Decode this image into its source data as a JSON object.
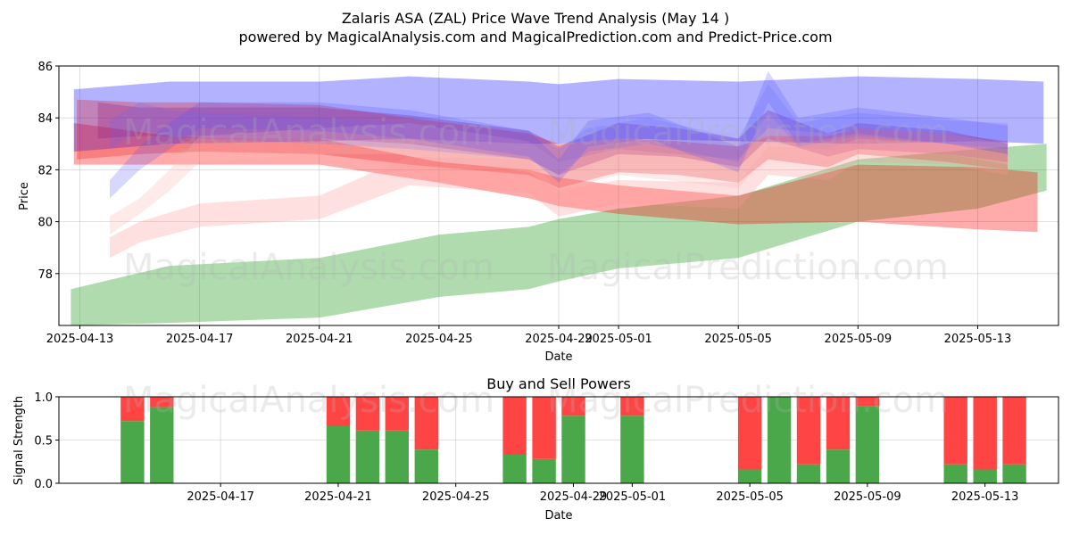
{
  "chart_data": [
    {
      "type": "area",
      "title_line1": "Zalaris ASA (ZAL) Price Wave Trend Analysis (May 14 )",
      "title_line2": "powered by MagicalAnalysis.com and MagicalPrediction.com and Predict-Price.com",
      "xlabel": "Date",
      "ylabel": "Price",
      "xlim_day_offsets": [
        -0.7,
        32.7
      ],
      "ylim": [
        76.0,
        86.0
      ],
      "x_ticks": [
        {
          "day": 0,
          "label": "2025-04-13"
        },
        {
          "day": 4,
          "label": "2025-04-17"
        },
        {
          "day": 8,
          "label": "2025-04-21"
        },
        {
          "day": 12,
          "label": "2025-04-25"
        },
        {
          "day": 16,
          "label": "2025-04-29"
        },
        {
          "day": 18,
          "label": "2025-05-01"
        },
        {
          "day": 22,
          "label": "2025-05-05"
        },
        {
          "day": 26,
          "label": "2025-05-09"
        },
        {
          "day": 30,
          "label": "2025-05-13"
        }
      ],
      "y_ticks": [
        78,
        80,
        82,
        84,
        86
      ],
      "watermarks": [
        "MagicalAnalysis.com",
        "MagicalPrediction.com"
      ],
      "bands": [
        {
          "name": "green trend",
          "color": "#2ca02c",
          "opacity": 0.38,
          "x": [
            -0.3,
            3,
            8,
            12,
            15,
            16,
            18,
            22,
            26,
            30,
            32.3
          ],
          "upper": [
            77.4,
            78.3,
            78.6,
            79.5,
            79.8,
            80.1,
            80.5,
            81.0,
            82.4,
            82.8,
            83.0
          ],
          "lower": [
            76.0,
            76.1,
            76.3,
            77.1,
            77.4,
            77.7,
            78.2,
            78.6,
            80.0,
            80.5,
            81.2
          ]
        },
        {
          "name": "red trend",
          "color": "#ff0000",
          "opacity": 0.33,
          "x": [
            -0.2,
            3,
            8,
            12,
            15,
            16,
            18,
            22,
            26,
            30,
            32
          ],
          "upper": [
            83.8,
            83.3,
            83.2,
            82.3,
            82.0,
            81.7,
            81.4,
            81.0,
            82.2,
            82.1,
            81.9
          ],
          "lower": [
            82.2,
            82.2,
            82.2,
            81.5,
            80.9,
            80.6,
            80.3,
            79.9,
            80.0,
            79.7,
            79.6
          ]
        },
        {
          "name": "blue trend",
          "color": "#0000ff",
          "opacity": 0.3,
          "x": [
            -0.2,
            3,
            8,
            11,
            15,
            16,
            18,
            22,
            26,
            30,
            32.2
          ],
          "upper": [
            85.1,
            85.4,
            85.4,
            85.6,
            85.4,
            85.3,
            85.5,
            85.4,
            85.6,
            85.5,
            85.4
          ],
          "lower": [
            82.7,
            83.0,
            83.1,
            83.2,
            83.0,
            83.0,
            83.2,
            83.1,
            83.0,
            83.1,
            83.0
          ]
        },
        {
          "name": "purple wave",
          "color": "#7a1fa0",
          "opacity": 0.3,
          "x": [
            0.6,
            2,
            4,
            8,
            11,
            15,
            16,
            18,
            20,
            22,
            23,
            25,
            26,
            29,
            31
          ],
          "upper": [
            84.6,
            84.4,
            84.4,
            84.4,
            84.1,
            83.5,
            82.9,
            83.8,
            83.6,
            83.2,
            84.3,
            83.4,
            83.8,
            83.5,
            83.0
          ],
          "lower": [
            83.2,
            83.3,
            83.3,
            83.2,
            83.0,
            82.4,
            81.8,
            82.6,
            82.5,
            82.1,
            83.2,
            82.5,
            82.8,
            82.6,
            82.3
          ]
        },
        {
          "name": "red wave",
          "color": "#e41a1c",
          "opacity": 0.3,
          "x": [
            -0.1,
            2,
            4,
            8,
            11,
            15,
            16,
            18,
            20,
            22,
            23,
            25,
            26,
            29,
            31
          ],
          "upper": [
            84.7,
            84.6,
            84.6,
            84.5,
            84.0,
            83.4,
            83.0,
            83.2,
            83.1,
            82.9,
            83.3,
            83.3,
            83.6,
            83.4,
            83.1
          ],
          "lower": [
            82.4,
            82.6,
            82.7,
            82.6,
            82.2,
            81.8,
            81.3,
            81.9,
            81.8,
            81.5,
            82.4,
            82.1,
            82.6,
            82.3,
            82.0
          ]
        },
        {
          "name": "pink wave 1",
          "color": "#ff9999",
          "opacity": 0.3,
          "x": [
            1,
            2,
            4,
            8,
            11,
            15,
            16,
            18,
            22,
            23,
            25,
            26,
            29,
            31
          ],
          "upper": [
            79.4,
            80.0,
            80.7,
            81.0,
            82.5,
            82.4,
            81.2,
            81.6,
            81.5,
            82.9,
            82.8,
            83.2,
            83.0,
            82.6
          ],
          "lower": [
            78.6,
            79.2,
            79.8,
            80.1,
            81.4,
            81.1,
            80.2,
            80.7,
            80.5,
            81.8,
            81.6,
            82.3,
            82.2,
            81.8
          ]
        },
        {
          "name": "pink wave 2",
          "color": "#ffb3b3",
          "opacity": 0.28,
          "x": [
            1,
            2,
            3,
            4,
            8,
            11,
            15,
            16,
            18,
            22,
            23,
            25,
            26,
            29,
            31
          ],
          "upper": [
            80.2,
            80.9,
            82.0,
            83.3,
            83.6,
            83.8,
            83.1,
            82.3,
            82.8,
            82.4,
            83.6,
            83.4,
            83.6,
            83.4,
            83.0
          ],
          "lower": [
            79.5,
            80.3,
            81.2,
            82.3,
            82.6,
            82.6,
            81.9,
            81.2,
            81.8,
            81.3,
            82.6,
            82.4,
            82.8,
            82.6,
            82.2
          ]
        },
        {
          "name": "blue wave 1",
          "color": "#4f4fff",
          "opacity": 0.22,
          "x": [
            1,
            2,
            3,
            4,
            8,
            11,
            15,
            16,
            17,
            19,
            22,
            23,
            24,
            26,
            29,
            31
          ],
          "upper": [
            81.6,
            82.9,
            83.8,
            84.6,
            84.6,
            84.3,
            83.5,
            82.4,
            83.9,
            84.2,
            82.9,
            85.8,
            84.0,
            84.4,
            84.0,
            83.7
          ],
          "lower": [
            80.9,
            82.0,
            82.8,
            83.6,
            83.5,
            83.2,
            82.5,
            81.5,
            82.9,
            83.2,
            81.9,
            84.6,
            83.0,
            83.4,
            83.0,
            82.6
          ]
        },
        {
          "name": "blue wave 2",
          "color": "#6666ff",
          "opacity": 0.2,
          "x": [
            1,
            2,
            3,
            4,
            8,
            11,
            15,
            16,
            17,
            19,
            22,
            23,
            24,
            26,
            29,
            31
          ],
          "upper": [
            83.9,
            84.6,
            84.3,
            84.2,
            84.0,
            83.8,
            83.4,
            82.8,
            83.6,
            84.0,
            83.2,
            85.3,
            83.8,
            84.2,
            83.9,
            83.8
          ],
          "lower": [
            82.8,
            83.5,
            83.3,
            83.2,
            83.0,
            82.8,
            82.4,
            81.8,
            82.7,
            83.0,
            82.3,
            84.2,
            82.9,
            83.3,
            83.0,
            82.8
          ]
        }
      ]
    },
    {
      "type": "bar",
      "title": "Buy and Sell Powers",
      "xlabel": "Date",
      "ylabel": "Signal Strength",
      "xlim_day_offsets": [
        -1.5,
        32.5
      ],
      "ylim": [
        0.0,
        1.0
      ],
      "y_ticks": [
        "0.0",
        "0.5",
        "1.0"
      ],
      "x_ticks": [
        {
          "day": 4,
          "label": "2025-04-17"
        },
        {
          "day": 8,
          "label": "2025-04-21"
        },
        {
          "day": 12,
          "label": "2025-04-25"
        },
        {
          "day": 16,
          "label": "2025-04-29"
        },
        {
          "day": 18,
          "label": "2025-05-01"
        },
        {
          "day": 22,
          "label": "2025-05-05"
        },
        {
          "day": 26,
          "label": "2025-05-09"
        },
        {
          "day": 30,
          "label": "2025-05-13"
        }
      ],
      "buy_color": "#4aa84a",
      "sell_color": "#ff4444",
      "series": [
        {
          "name": "Buy",
          "days": [
            1,
            2,
            8,
            9,
            10,
            11,
            14,
            15,
            16,
            18,
            22,
            23,
            24,
            25,
            26,
            29,
            30,
            31
          ],
          "values": [
            0.72,
            0.88,
            0.66,
            0.61,
            0.61,
            0.39,
            0.33,
            0.28,
            0.78,
            0.78,
            0.16,
            1.0,
            0.22,
            0.39,
            0.89,
            0.22,
            0.16,
            0.22
          ]
        },
        {
          "name": "Sell",
          "days": [
            1,
            2,
            8,
            9,
            10,
            11,
            14,
            15,
            16,
            18,
            22,
            23,
            24,
            25,
            26,
            29,
            30,
            31
          ],
          "values": [
            0.28,
            0.12,
            0.34,
            0.39,
            0.39,
            0.61,
            0.67,
            0.72,
            0.22,
            0.22,
            0.84,
            0.0,
            0.78,
            0.61,
            0.11,
            0.78,
            0.84,
            0.78
          ]
        }
      ]
    }
  ]
}
